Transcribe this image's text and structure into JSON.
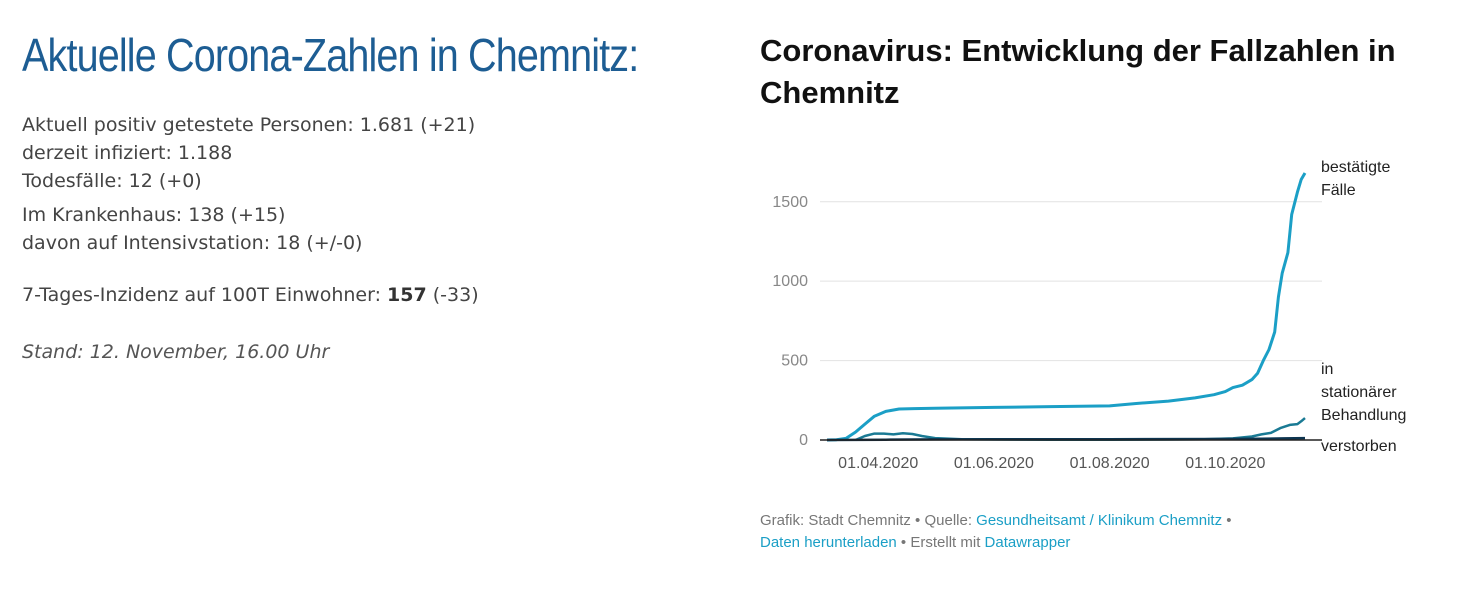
{
  "headline": "Aktuelle Corona-Zahlen in Chemnitz:",
  "stats": {
    "line1": "Aktuell positiv getestete Personen: 1.681 (+21)",
    "line2": "derzeit infiziert: 1.188",
    "line3": "Todesfälle: 12 (+0)",
    "line4": "Im Krankenhaus: 138 (+15)",
    "line5": "davon auf Intensivstation: 18 (+/-0)",
    "incidence_prefix": "7-Tages-Inzidenz auf 100T Einwohner: ",
    "incidence_value": "157",
    "incidence_suffix": " (-33)"
  },
  "stand": "Stand: 12. November, 16.00 Uhr",
  "footer": {
    "prefix": "Grafik: Stadt Chemnitz • Quelle: ",
    "source_link": "Gesundheitsamt / Klinikum Chemnitz",
    "sep1": " •",
    "download_link": "Daten herunterladen",
    "sep2": " • Erstellt mit ",
    "tool_link": "Datawrapper"
  },
  "colors": {
    "headline": "#1d5d93",
    "confirmed": "#1b9fc6",
    "hospital": "#1a7a94",
    "deaths": "#0d3550",
    "link": "#1b9fc6"
  },
  "chart_data": {
    "type": "line",
    "title": "Coronavirus: Entwicklung der Fallzahlen in Chemnitz",
    "xlabel": "",
    "ylabel": "",
    "x_ticks": [
      "01.04.2020",
      "01.06.2020",
      "01.08.2020",
      "01.10.2020"
    ],
    "y_ticks": [
      0,
      500,
      1000,
      1500
    ],
    "ylim": [
      0,
      1700
    ],
    "xlim": [
      "2020-03-05",
      "2020-11-12"
    ],
    "grid": true,
    "series": [
      {
        "name": "bestätigte Fälle",
        "color": "#1b9fc6",
        "points": [
          [
            "2020-03-05",
            0
          ],
          [
            "2020-03-10",
            2
          ],
          [
            "2020-03-15",
            10
          ],
          [
            "2020-03-20",
            50
          ],
          [
            "2020-03-25",
            100
          ],
          [
            "2020-03-30",
            150
          ],
          [
            "2020-04-05",
            180
          ],
          [
            "2020-04-12",
            195
          ],
          [
            "2020-04-20",
            198
          ],
          [
            "2020-05-01",
            200
          ],
          [
            "2020-06-01",
            205
          ],
          [
            "2020-07-01",
            210
          ],
          [
            "2020-08-01",
            215
          ],
          [
            "2020-08-15",
            230
          ],
          [
            "2020-09-01",
            245
          ],
          [
            "2020-09-15",
            265
          ],
          [
            "2020-09-25",
            285
          ],
          [
            "2020-10-01",
            305
          ],
          [
            "2020-10-05",
            330
          ],
          [
            "2020-10-10",
            345
          ],
          [
            "2020-10-15",
            380
          ],
          [
            "2020-10-18",
            420
          ],
          [
            "2020-10-21",
            500
          ],
          [
            "2020-10-24",
            570
          ],
          [
            "2020-10-27",
            680
          ],
          [
            "2020-10-29",
            900
          ],
          [
            "2020-10-31",
            1050
          ],
          [
            "2020-11-03",
            1180
          ],
          [
            "2020-11-05",
            1420
          ],
          [
            "2020-11-08",
            1560
          ],
          [
            "2020-11-10",
            1640
          ],
          [
            "2020-11-12",
            1681
          ]
        ]
      },
      {
        "name": "in stationärer Behandlung",
        "color": "#1a7a94",
        "points": [
          [
            "2020-03-20",
            0
          ],
          [
            "2020-03-25",
            25
          ],
          [
            "2020-03-30",
            40
          ],
          [
            "2020-04-04",
            40
          ],
          [
            "2020-04-09",
            35
          ],
          [
            "2020-04-14",
            42
          ],
          [
            "2020-04-19",
            38
          ],
          [
            "2020-04-24",
            25
          ],
          [
            "2020-05-01",
            12
          ],
          [
            "2020-05-15",
            5
          ],
          [
            "2020-06-01",
            3
          ],
          [
            "2020-07-01",
            2
          ],
          [
            "2020-08-01",
            2
          ],
          [
            "2020-09-01",
            3
          ],
          [
            "2020-09-20",
            5
          ],
          [
            "2020-10-05",
            10
          ],
          [
            "2020-10-15",
            22
          ],
          [
            "2020-10-20",
            35
          ],
          [
            "2020-10-25",
            45
          ],
          [
            "2020-10-30",
            75
          ],
          [
            "2020-11-04",
            95
          ],
          [
            "2020-11-08",
            100
          ],
          [
            "2020-11-10",
            118
          ],
          [
            "2020-11-12",
            138
          ]
        ]
      },
      {
        "name": "verstorben",
        "color": "#0d3550",
        "points": [
          [
            "2020-03-05",
            0
          ],
          [
            "2020-04-05",
            2
          ],
          [
            "2020-05-01",
            4
          ],
          [
            "2020-06-01",
            5
          ],
          [
            "2020-08-01",
            5
          ],
          [
            "2020-10-01",
            6
          ],
          [
            "2020-10-20",
            8
          ],
          [
            "2020-11-01",
            10
          ],
          [
            "2020-11-12",
            12
          ]
        ]
      }
    ],
    "labels": {
      "confirmed": [
        "bestätigte",
        "Fälle"
      ],
      "hospital": [
        "in",
        "stationärer",
        "Behandlung"
      ],
      "deaths": [
        "verstorben"
      ]
    }
  }
}
